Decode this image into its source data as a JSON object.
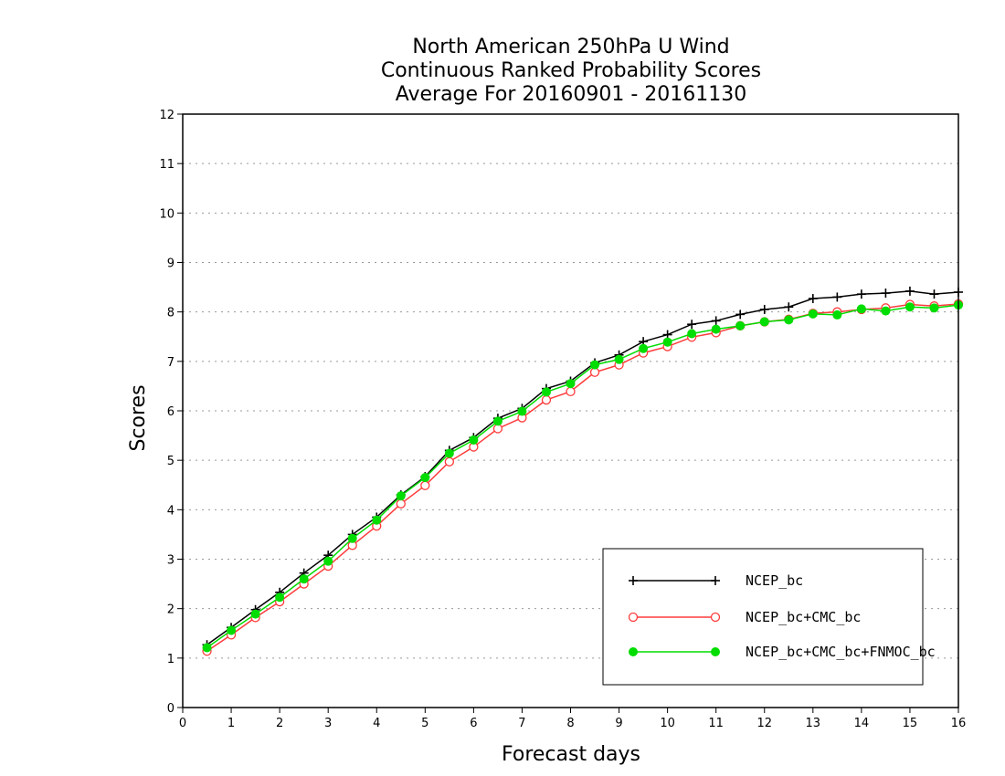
{
  "chart_data": {
    "type": "line",
    "title": [
      "North American 250hPa U Wind",
      "Continuous Ranked Probability Scores",
      "Average For 20160901 - 20161130"
    ],
    "xlabel": "Forecast days",
    "ylabel": "Scores",
    "xlim": [
      0,
      16
    ],
    "ylim": [
      0,
      12
    ],
    "xticks": [
      "0",
      "1",
      "2",
      "3",
      "4",
      "5",
      "6",
      "7",
      "8",
      "9",
      "10",
      "11",
      "12",
      "13",
      "14",
      "15",
      "16"
    ],
    "yticks": [
      "0",
      "1",
      "2",
      "3",
      "4",
      "5",
      "6",
      "7",
      "8",
      "9",
      "10",
      "11",
      "12"
    ],
    "grid": true,
    "legend_position": "bottom-right",
    "x": [
      0.5,
      1,
      1.5,
      2,
      2.5,
      3,
      3.5,
      4,
      4.5,
      5,
      5.5,
      6,
      6.5,
      7,
      7.5,
      8,
      8.5,
      9,
      9.5,
      10,
      10.5,
      11,
      11.5,
      12,
      12.5,
      13,
      13.5,
      14,
      14.5,
      15,
      15.5,
      16
    ],
    "series": [
      {
        "name": "NCEP_bc",
        "color": "#000000",
        "marker": "plus",
        "values": [
          1.27,
          1.62,
          1.98,
          2.33,
          2.72,
          3.08,
          3.5,
          3.85,
          4.3,
          4.67,
          5.2,
          5.46,
          5.85,
          6.05,
          6.45,
          6.6,
          6.97,
          7.13,
          7.4,
          7.54,
          7.75,
          7.82,
          7.95,
          8.05,
          8.1,
          8.27,
          8.3,
          8.36,
          8.38,
          8.42,
          8.36,
          8.4
        ]
      },
      {
        "name": "NCEP_bc+CMC_bc",
        "color": "#ff3b3b",
        "marker": "open-circle",
        "values": [
          1.14,
          1.47,
          1.82,
          2.14,
          2.5,
          2.86,
          3.28,
          3.67,
          4.12,
          4.49,
          4.97,
          5.27,
          5.64,
          5.86,
          6.22,
          6.39,
          6.78,
          6.93,
          7.17,
          7.3,
          7.49,
          7.58,
          7.72,
          7.8,
          7.85,
          7.97,
          8.0,
          8.05,
          8.08,
          8.15,
          8.12,
          8.16
        ]
      },
      {
        "name": "NCEP_bc+CMC_bc+FNMOC_bc",
        "color": "#00dd00",
        "marker": "filled-circle",
        "values": [
          1.21,
          1.56,
          1.89,
          2.23,
          2.6,
          2.96,
          3.42,
          3.79,
          4.28,
          4.65,
          5.14,
          5.41,
          5.79,
          5.99,
          6.38,
          6.55,
          6.93,
          7.04,
          7.26,
          7.39,
          7.56,
          7.65,
          7.72,
          7.8,
          7.84,
          7.96,
          7.94,
          8.06,
          8.02,
          8.1,
          8.08,
          8.14
        ]
      }
    ]
  }
}
